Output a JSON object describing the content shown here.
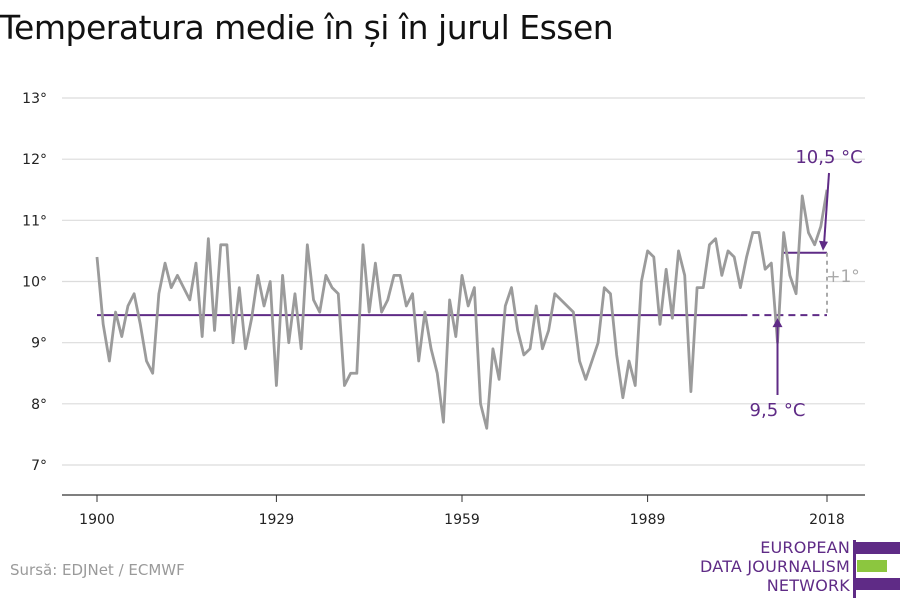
{
  "title": "Temperatura medie în și în jurul Essen",
  "source": "Sursă: EDJNet / ECMWF",
  "logo": {
    "lines": [
      "EUROPEAN",
      "DATA JOURNALISM",
      "NETWORK"
    ]
  },
  "colors": {
    "series": "#9b9b9b",
    "accent": "#5f2b86",
    "logo_green": "#8cc63f",
    "delta": "#aaaaaa"
  },
  "chart_data": {
    "type": "line",
    "title": "Temperatura medie în și în jurul Essen",
    "xlabel": "",
    "ylabel": "",
    "xlim": [
      1900,
      2018
    ],
    "ylim": [
      7,
      13
    ],
    "grid": true,
    "x_ticks": [
      1900,
      1929,
      1959,
      1989,
      2018
    ],
    "y_ticks": [
      {
        "value": 7,
        "label": "7°"
      },
      {
        "value": 8,
        "label": "8°"
      },
      {
        "value": 9,
        "label": "9°"
      },
      {
        "value": 10,
        "label": "10°"
      },
      {
        "value": 11,
        "label": "11°"
      },
      {
        "value": 12,
        "label": "12°"
      },
      {
        "value": 13,
        "label": "13°"
      }
    ],
    "series": [
      {
        "x": [
          1900,
          1901,
          1902,
          1903,
          1904,
          1905,
          1906,
          1907,
          1908,
          1909,
          1910,
          1911,
          1912,
          1913,
          1914,
          1915,
          1916,
          1917,
          1918,
          1919,
          1920,
          1921,
          1922,
          1923,
          1924,
          1925,
          1926,
          1927,
          1928,
          1929,
          1930,
          1931,
          1932,
          1933,
          1934,
          1935,
          1936,
          1937,
          1938,
          1939,
          1940,
          1941,
          1942,
          1943,
          1944,
          1945,
          1946,
          1947,
          1948,
          1949,
          1950,
          1951,
          1952,
          1953,
          1954,
          1955,
          1956,
          1957,
          1958,
          1959,
          1960,
          1961,
          1962,
          1963,
          1964,
          1965,
          1966,
          1967,
          1968,
          1969,
          1970,
          1971,
          1972,
          1973,
          1974,
          1975,
          1976,
          1977,
          1978,
          1979,
          1980,
          1981,
          1982,
          1983,
          1984,
          1985,
          1986,
          1987,
          1988,
          1989,
          1990,
          1991,
          1992,
          1993,
          1994,
          1995,
          1996,
          1997,
          1998,
          1999,
          2000,
          2001,
          2002,
          2003,
          2004,
          2005,
          2006,
          2007,
          2008,
          2009,
          2010,
          2011,
          2012,
          2013,
          2014,
          2015,
          2016,
          2017,
          2018
        ],
        "values": [
          10.4,
          9.3,
          8.7,
          9.5,
          9.1,
          9.6,
          9.8,
          9.3,
          8.7,
          8.5,
          9.8,
          10.3,
          9.9,
          10.1,
          9.9,
          9.7,
          10.3,
          9.1,
          10.7,
          9.2,
          10.6,
          10.6,
          9.0,
          9.9,
          8.9,
          9.4,
          10.1,
          9.6,
          10.0,
          8.3,
          10.1,
          9.0,
          9.8,
          8.9,
          10.6,
          9.7,
          9.5,
          10.1,
          9.9,
          9.8,
          8.3,
          8.5,
          8.5,
          10.6,
          9.5,
          10.3,
          9.5,
          9.7,
          10.1,
          10.1,
          9.6,
          9.8,
          8.7,
          9.5,
          8.9,
          8.5,
          7.7,
          9.7,
          9.1,
          10.1,
          9.6,
          9.9,
          8.0,
          7.6,
          8.9,
          8.4,
          9.6,
          9.9,
          9.2,
          8.8,
          8.9,
          9.6,
          8.9,
          9.2,
          9.8,
          9.7,
          9.6,
          9.5,
          8.7,
          8.4,
          8.7,
          9.0,
          9.9,
          9.8,
          8.8,
          8.1,
          8.7,
          8.3,
          10.0,
          10.5,
          10.4,
          9.3,
          10.2,
          9.4,
          10.5,
          10.1,
          8.2,
          9.9,
          9.9,
          10.6,
          10.7,
          10.1,
          10.5,
          10.4,
          9.9,
          10.4,
          10.8,
          10.8,
          10.2,
          10.3,
          9.0,
          10.8,
          10.1,
          9.8,
          11.4,
          10.8,
          10.6,
          10.9,
          11.5
        ]
      }
    ],
    "reference_lines": [
      {
        "value": 9.45,
        "from": 1900,
        "to": 2018,
        "label": "9,5 °C"
      },
      {
        "value": 10.47,
        "from": 2011,
        "to": 2018,
        "label": "10,5 °C"
      }
    ],
    "delta_label": "+1°"
  }
}
